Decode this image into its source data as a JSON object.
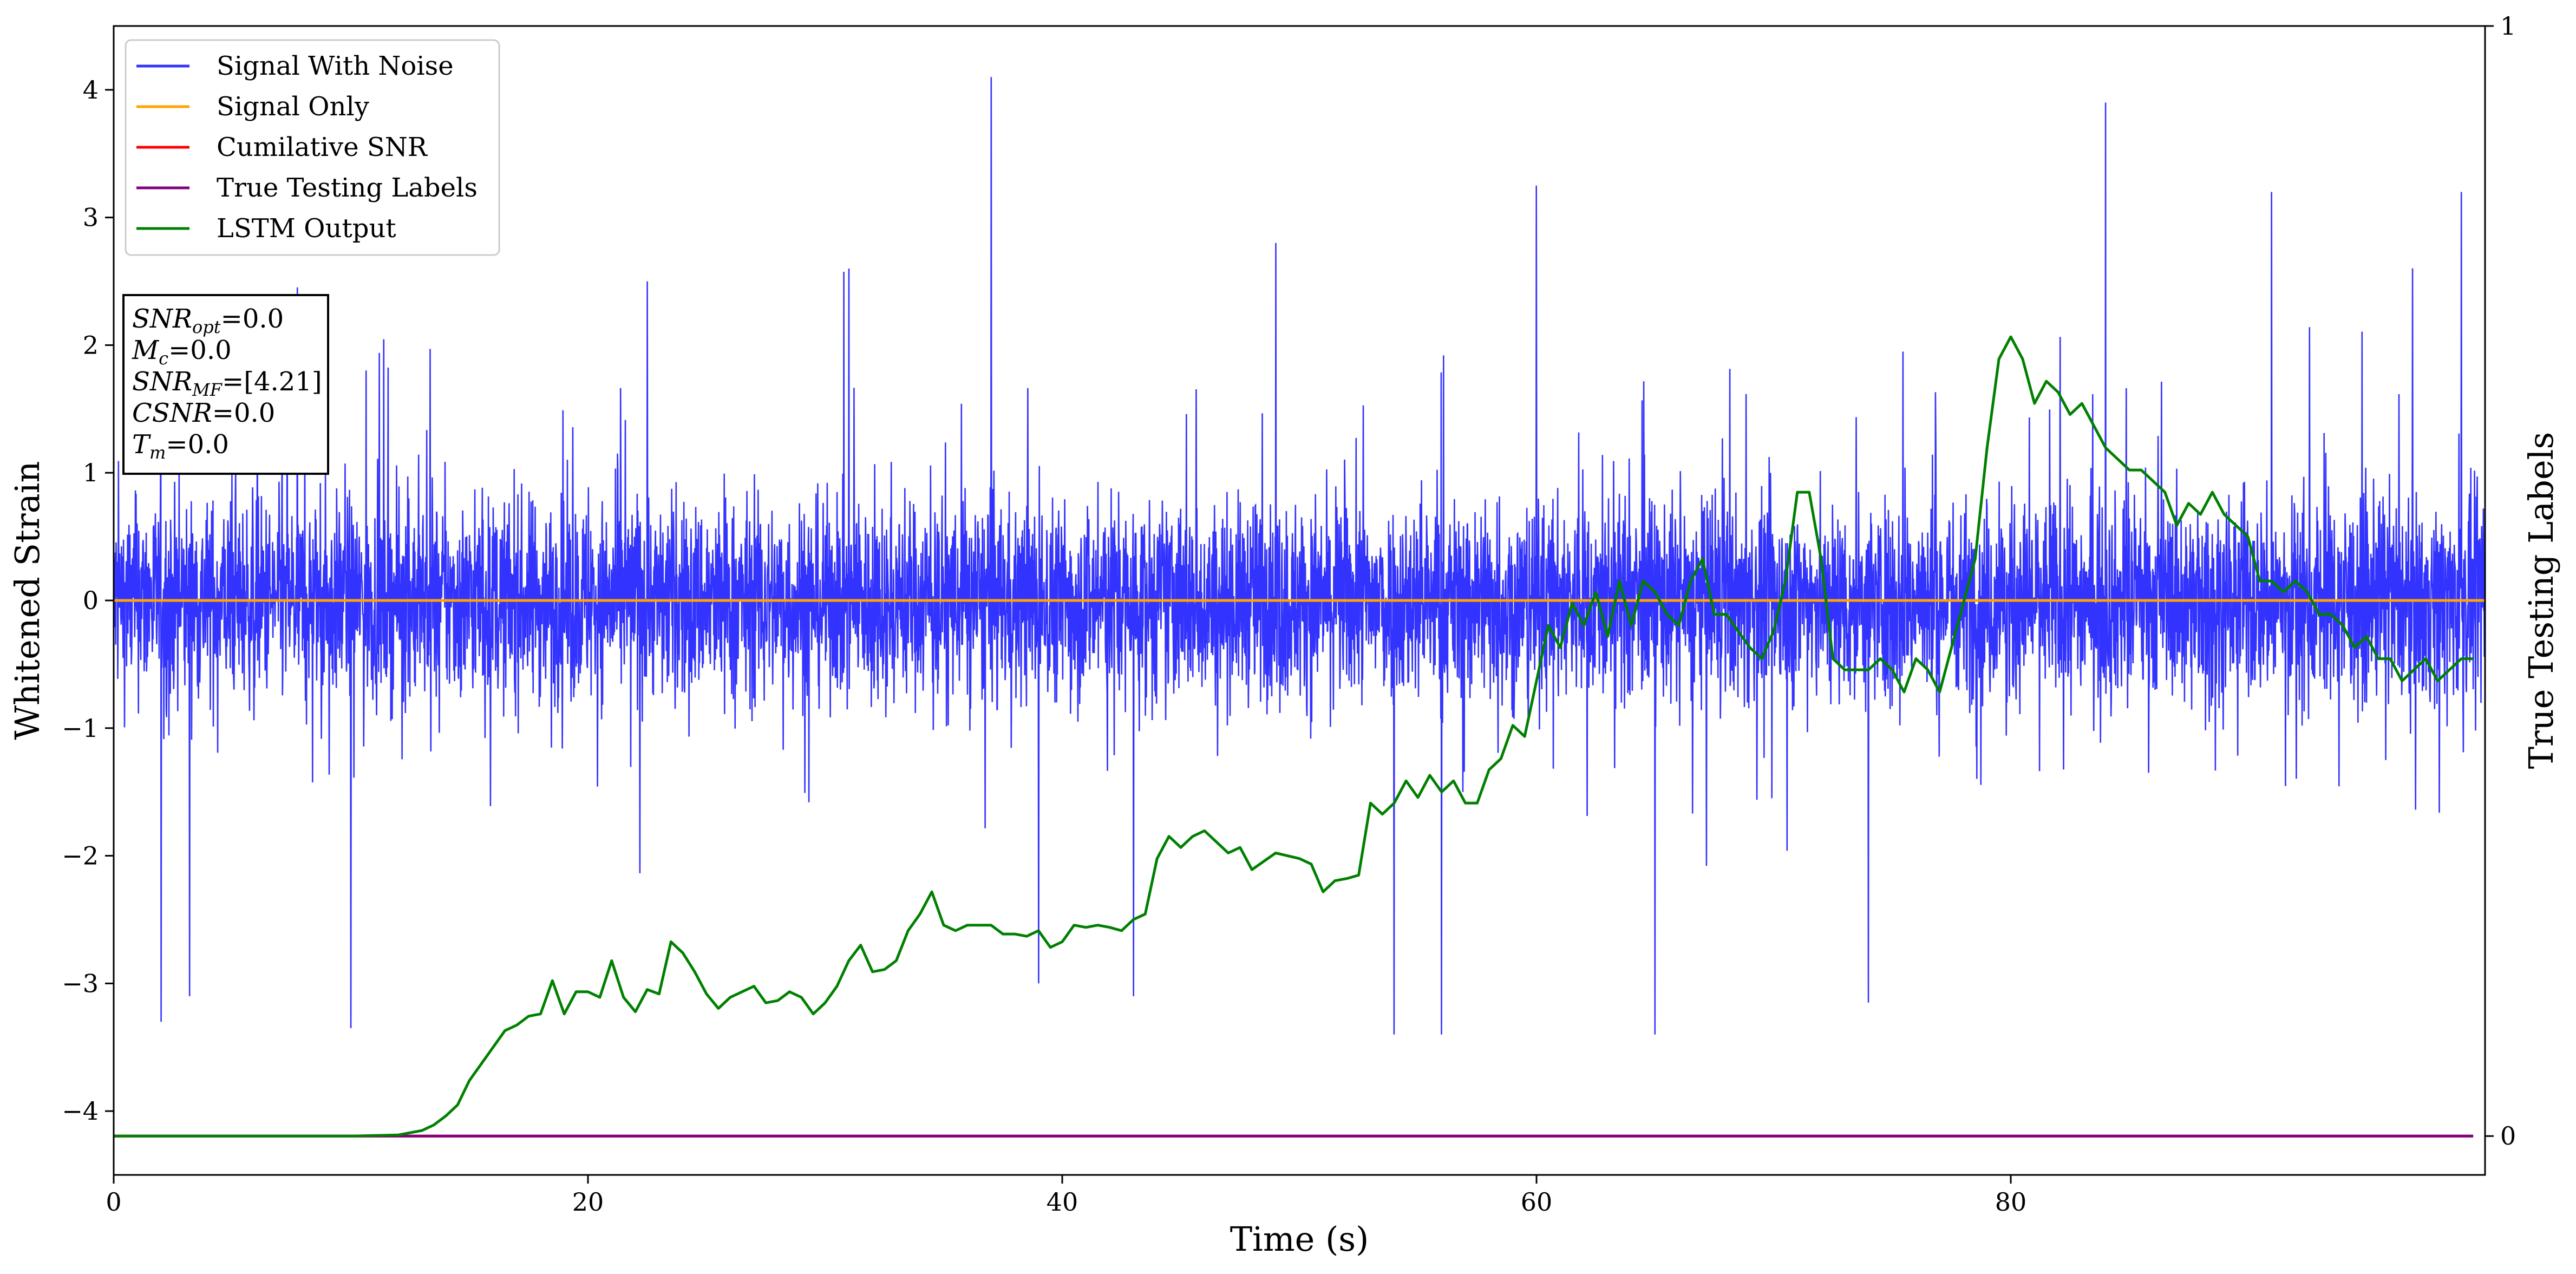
{
  "chart_data": {
    "type": "line",
    "xlabel": "Time (s)",
    "ylabel_left": "Whitened Strain",
    "ylabel_right": "True Testing Labels",
    "xlim": [
      0,
      100
    ],
    "ylim_left": [
      -4.5,
      4.5
    ],
    "ylim_right": [
      -0.035,
      1.0
    ],
    "x_ticks": [
      0,
      20,
      40,
      60,
      80
    ],
    "y_left_ticks": [
      -4,
      -3,
      -2,
      -1,
      0,
      1,
      2,
      3,
      4
    ],
    "y_right_ticks": [
      0,
      1
    ],
    "grid": false,
    "legend_position": "upper-left",
    "series": [
      {
        "name": "Signal With Noise",
        "axis": "left",
        "color": "#3333ff",
        "description": "dense noise signal, spans about 0 to 100 s",
        "typical_range": [
          -1.6,
          1.6
        ],
        "peaks": [
          {
            "x": 2.0,
            "y": -3.3
          },
          {
            "x": 3.2,
            "y": -3.1
          },
          {
            "x": 10.0,
            "y": -3.35
          },
          {
            "x": 22.5,
            "y": 2.5
          },
          {
            "x": 31.0,
            "y": 2.6
          },
          {
            "x": 37.0,
            "y": 4.1
          },
          {
            "x": 39.0,
            "y": -3.0
          },
          {
            "x": 43.0,
            "y": -3.1
          },
          {
            "x": 49.0,
            "y": 2.8
          },
          {
            "x": 54.0,
            "y": -3.4
          },
          {
            "x": 56.0,
            "y": -3.4
          },
          {
            "x": 60.0,
            "y": 3.25
          },
          {
            "x": 65.0,
            "y": -3.4
          },
          {
            "x": 74.0,
            "y": -3.15
          },
          {
            "x": 84.0,
            "y": 3.9
          },
          {
            "x": 91.0,
            "y": 3.2
          },
          {
            "x": 99.0,
            "y": 3.2
          }
        ]
      },
      {
        "name": "Signal Only",
        "axis": "left",
        "color": "#ffa500",
        "x": [
          0,
          100
        ],
        "y": [
          0,
          0
        ]
      },
      {
        "name": "Cumilative SNR",
        "axis": "right",
        "color": "#ff0000",
        "x": [
          0,
          99.5
        ],
        "y": [
          0,
          0
        ]
      },
      {
        "name": "True Testing Labels",
        "axis": "right",
        "color": "#800080",
        "x": [
          0,
          99.5
        ],
        "y": [
          0,
          0
        ]
      },
      {
        "name": "LSTM Output",
        "axis": "right",
        "color": "#008000",
        "x": [
          0,
          10,
          12,
          13,
          13.5,
          14,
          14.5,
          15,
          15.5,
          16,
          16.5,
          17,
          17.5,
          18,
          18.5,
          19,
          19.5,
          20,
          20.5,
          21,
          21.5,
          22,
          22.5,
          23,
          23.5,
          24,
          24.5,
          25,
          25.5,
          26,
          27,
          27.5,
          28,
          28.5,
          29,
          29.5,
          30,
          30.5,
          31,
          31.5,
          32,
          32.5,
          33,
          33.5,
          34,
          34.5,
          35,
          35.5,
          36,
          37,
          37.5,
          38,
          38.5,
          39,
          39.5,
          40,
          40.5,
          41,
          41.5,
          42,
          42.5,
          43,
          43.5,
          44,
          44.5,
          45,
          45.5,
          46,
          46.5,
          47,
          47.5,
          48,
          49,
          50,
          50.5,
          51,
          51.5,
          52,
          52.5,
          53,
          53.5,
          54,
          54.5,
          55,
          55.5,
          56,
          56.5,
          57,
          57.5,
          58,
          58.5,
          59,
          59.5,
          60,
          60.5,
          61,
          61.5,
          62,
          62.5,
          63,
          63.5,
          64,
          64.5,
          65,
          65.5,
          66,
          66.5,
          67,
          67.5,
          68,
          68.5,
          69,
          69.5,
          70,
          70.5,
          71,
          71.5,
          72,
          72.5,
          73,
          73.5,
          74,
          74.5,
          75,
          75.5,
          76,
          76.5,
          77,
          77.5,
          78,
          78.5,
          79,
          79.5,
          80,
          80.5,
          81,
          81.5,
          82,
          82.5,
          83,
          83.5,
          84,
          84.5,
          85,
          85.5,
          86,
          86.5,
          87,
          87.5,
          88,
          88.5,
          89,
          89.5,
          90,
          90.5,
          91,
          91.5,
          92,
          92.5,
          93,
          93.5,
          94,
          94.5,
          95,
          95.5,
          96,
          96.5,
          97,
          97.5,
          98,
          98.5,
          99,
          99.5
        ],
        "y": [
          0,
          0,
          0.001,
          0.005,
          0.01,
          0.018,
          0.028,
          0.05,
          0.065,
          0.08,
          0.095,
          0.1,
          0.108,
          0.11,
          0.14,
          0.11,
          0.13,
          0.13,
          0.125,
          0.158,
          0.125,
          0.112,
          0.132,
          0.128,
          0.175,
          0.165,
          0.148,
          0.128,
          0.115,
          0.125,
          0.135,
          0.12,
          0.122,
          0.13,
          0.125,
          0.11,
          0.12,
          0.135,
          0.158,
          0.172,
          0.148,
          0.15,
          0.158,
          0.185,
          0.2,
          0.22,
          0.19,
          0.185,
          0.19,
          0.19,
          0.182,
          0.182,
          0.18,
          0.185,
          0.17,
          0.175,
          0.19,
          0.188,
          0.19,
          0.188,
          0.185,
          0.195,
          0.2,
          0.25,
          0.27,
          0.26,
          0.27,
          0.275,
          0.265,
          0.255,
          0.26,
          0.24,
          0.255,
          0.25,
          0.245,
          0.22,
          0.23,
          0.232,
          0.235,
          0.3,
          0.29,
          0.3,
          0.32,
          0.305,
          0.325,
          0.31,
          0.32,
          0.3,
          0.3,
          0.33,
          0.34,
          0.37,
          0.36,
          0.41,
          0.46,
          0.44,
          0.48,
          0.46,
          0.49,
          0.45,
          0.5,
          0.46,
          0.5,
          0.49,
          0.47,
          0.46,
          0.5,
          0.52,
          0.47,
          0.47,
          0.455,
          0.44,
          0.43,
          0.455,
          0.5,
          0.58,
          0.58,
          0.52,
          0.43,
          0.42,
          0.42,
          0.42,
          0.43,
          0.42,
          0.4,
          0.43,
          0.42,
          0.4,
          0.44,
          0.48,
          0.52,
          0.62,
          0.7,
          0.72,
          0.7,
          0.66,
          0.68,
          0.67,
          0.65,
          0.66,
          0.64,
          0.62,
          0.61,
          0.6,
          0.6,
          0.59,
          0.58,
          0.55,
          0.57,
          0.56,
          0.58,
          0.56,
          0.55,
          0.54,
          0.5,
          0.5,
          0.49,
          0.5,
          0.49,
          0.47,
          0.47,
          0.46,
          0.44,
          0.45,
          0.43,
          0.43,
          0.41,
          0.42,
          0.43,
          0.41,
          0.42,
          0.43,
          0.43
        ]
      }
    ]
  },
  "legend": [
    {
      "label": "Signal With Noise",
      "color": "#3333ff"
    },
    {
      "label": "Signal Only",
      "color": "#ffa500"
    },
    {
      "label": "Cumilative SNR",
      "color": "#ff0000"
    },
    {
      "label": "True Testing Labels",
      "color": "#800080"
    },
    {
      "label": "LSTM Output",
      "color": "#008000"
    }
  ],
  "info_box": {
    "snr_opt": {
      "name": "SNR",
      "sub": "opt",
      "value": "=0.0"
    },
    "mc": {
      "name": "M",
      "sub": "c",
      "value": "=0.0"
    },
    "snr_mf": {
      "name": "SNR",
      "sub": "MF",
      "value": "=[4.21]"
    },
    "csnr": {
      "name": "CSNR",
      "sub": "",
      "value": "=0.0"
    },
    "tm": {
      "name": "T",
      "sub": "m",
      "value": "=0.0"
    }
  }
}
